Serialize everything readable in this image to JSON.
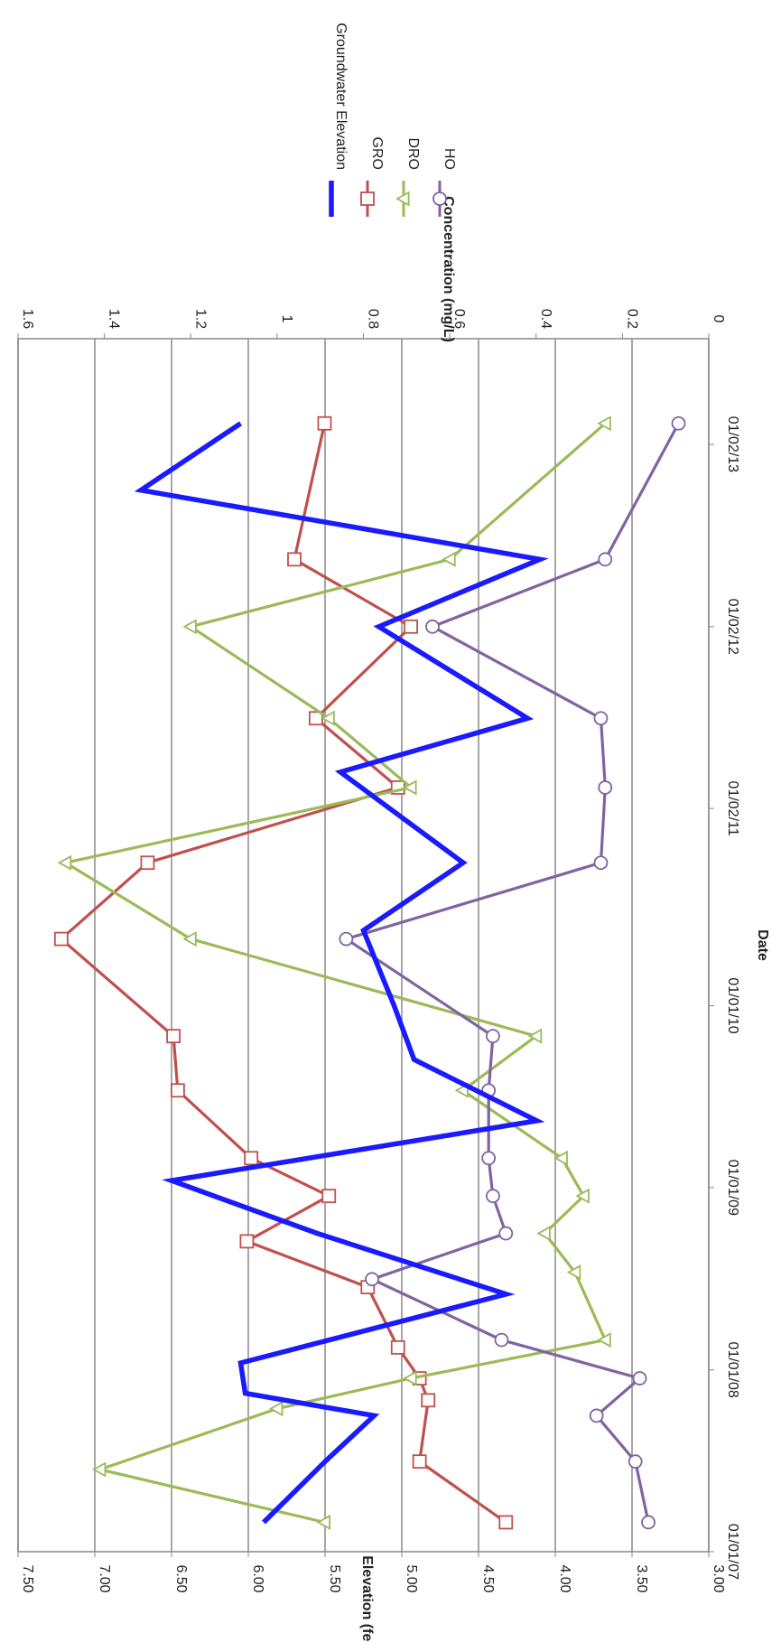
{
  "chart_data": {
    "type": "line",
    "orientation": "rotated-90-clockwise",
    "xlabel": "Date",
    "ylabel_left": "Elevation (feet amsl)",
    "ylabel_right": "Concentration (mg/L)",
    "x_ticks": [
      "01/01/07",
      "01/01/08",
      "01/01/09",
      "01/01/10",
      "01/02/11",
      "01/02/12",
      "01/02/13"
    ],
    "xlim": [
      "2007-01-01",
      "2013-09-01"
    ],
    "ylim_left": [
      3.0,
      7.5
    ],
    "y_ticks_left": [
      "3.00",
      "3.50",
      "4.00",
      "4.50",
      "5.00",
      "5.50",
      "6.00",
      "6.50",
      "7.00",
      "7.50"
    ],
    "ylim_right": [
      0,
      1.6
    ],
    "y_ticks_right": [
      "0",
      "0.2",
      "0.4",
      "0.6",
      "0.8",
      "1",
      "1.2",
      "1.4",
      "1.6"
    ],
    "grid": "horizontal",
    "legend_position": "right",
    "series": [
      {
        "name": "Groundwater Elevation",
        "axis": "left",
        "color": "#1a1aff",
        "marker": "none",
        "points": [
          [
            "2007-03-01",
            5.9
          ],
          [
            "2007-07-01",
            5.5
          ],
          [
            "2007-10-01",
            5.18
          ],
          [
            "2007-11-15",
            6.02
          ],
          [
            "2008-01-15",
            6.05
          ],
          [
            "2008-06-01",
            4.32
          ],
          [
            "2008-10-01",
            5.55
          ],
          [
            "2009-01-15",
            6.5
          ],
          [
            "2009-05-15",
            4.12
          ],
          [
            "2009-09-15",
            4.92
          ],
          [
            "2010-01-01",
            5.05
          ],
          [
            "2010-06-01",
            5.25
          ],
          [
            "2010-10-15",
            4.6
          ],
          [
            "2011-04-15",
            5.4
          ],
          [
            "2011-08-01",
            4.18
          ],
          [
            "2012-02-01",
            5.15
          ],
          [
            "2012-06-15",
            4.1
          ],
          [
            "2012-11-01",
            6.7
          ],
          [
            "2013-03-15",
            6.05
          ]
        ]
      },
      {
        "name": "GRO",
        "axis": "right",
        "color": "#c0504d",
        "marker": "square",
        "points": [
          [
            "2007-03-01",
            0.47
          ],
          [
            "2007-07-01",
            0.67
          ],
          [
            "2007-11-01",
            0.65
          ],
          [
            "2007-12-15",
            0.67
          ],
          [
            "2008-02-15",
            0.72
          ],
          [
            "2008-06-15",
            0.79
          ],
          [
            "2008-09-15",
            1.07
          ],
          [
            "2008-12-15",
            0.88
          ],
          [
            "2009-03-01",
            1.06
          ],
          [
            "2009-07-15",
            1.23
          ],
          [
            "2009-11-01",
            1.24
          ],
          [
            "2010-05-15",
            1.5
          ],
          [
            "2010-10-15",
            1.3
          ],
          [
            "2011-03-15",
            0.72
          ],
          [
            "2011-08-01",
            0.91
          ],
          [
            "2012-02-01",
            0.69
          ],
          [
            "2012-06-15",
            0.96
          ],
          [
            "2013-03-15",
            0.89
          ]
        ]
      },
      {
        "name": "DRO",
        "axis": "right",
        "color": "#9bbb59",
        "marker": "triangle",
        "points": [
          [
            "2007-03-01",
            0.89
          ],
          [
            "2007-06-15",
            1.41
          ],
          [
            "2007-10-15",
            1.0
          ],
          [
            "2007-12-15",
            0.69
          ],
          [
            "2008-03-01",
            0.24
          ],
          [
            "2008-07-15",
            0.31
          ],
          [
            "2008-10-01",
            0.38
          ],
          [
            "2008-12-15",
            0.29
          ],
          [
            "2009-03-01",
            0.34
          ],
          [
            "2009-07-15",
            0.57
          ],
          [
            "2009-11-01",
            0.4
          ],
          [
            "2010-05-15",
            1.2
          ],
          [
            "2010-10-15",
            1.49
          ],
          [
            "2011-03-15",
            0.69
          ],
          [
            "2011-08-01",
            0.88
          ],
          [
            "2012-02-01",
            1.2
          ],
          [
            "2012-06-15",
            0.6
          ],
          [
            "2013-03-15",
            0.24
          ]
        ]
      },
      {
        "name": "HO",
        "axis": "right",
        "color": "#8064a2",
        "marker": "circle",
        "points": [
          [
            "2007-03-01",
            0.14
          ],
          [
            "2007-07-01",
            0.17
          ],
          [
            "2007-10-01",
            0.26
          ],
          [
            "2007-12-15",
            0.16
          ],
          [
            "2008-03-01",
            0.48
          ],
          [
            "2008-07-01",
            0.78
          ],
          [
            "2008-10-01",
            0.47
          ],
          [
            "2008-12-15",
            0.5
          ],
          [
            "2009-03-01",
            0.51
          ],
          [
            "2009-07-15",
            0.51
          ],
          [
            "2009-11-01",
            0.5
          ],
          [
            "2010-05-15",
            0.84
          ],
          [
            "2010-10-15",
            0.25
          ],
          [
            "2011-03-15",
            0.24
          ],
          [
            "2011-08-01",
            0.25
          ],
          [
            "2012-02-01",
            0.64
          ],
          [
            "2012-06-15",
            0.24
          ],
          [
            "2013-03-15",
            0.07
          ]
        ]
      }
    ]
  }
}
